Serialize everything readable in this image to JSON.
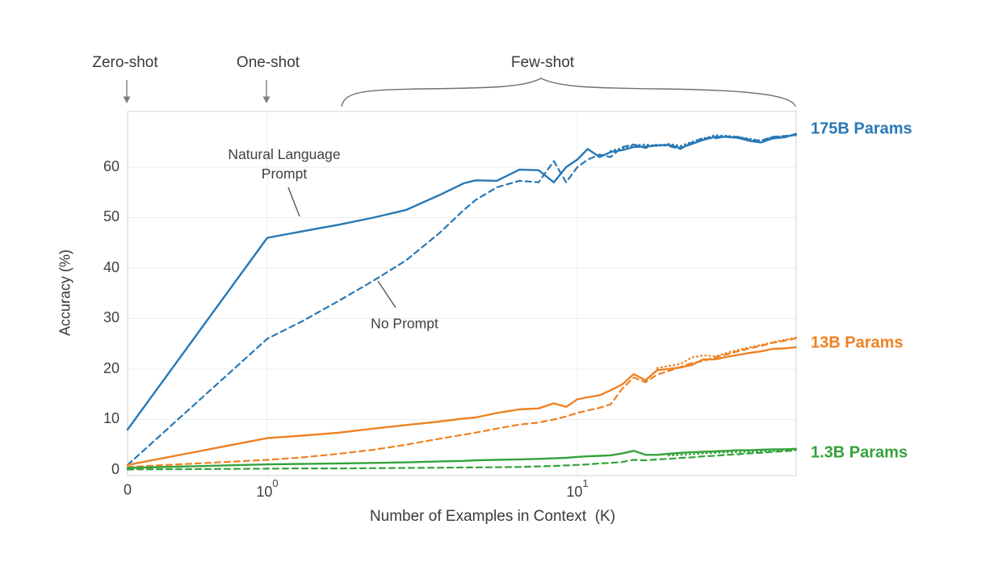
{
  "labels": {
    "zero_shot": "Zero-shot",
    "one_shot": "One-shot",
    "few_shot": "Few-shot",
    "natural_language_prompt": "Natural Language\nPrompt",
    "no_prompt": "No Prompt",
    "params_175b": "175B Params",
    "params_13b": "13B Params",
    "params_1_3b": "1.3B Params"
  },
  "chart_data": {
    "type": "line",
    "title": "",
    "x_axis": {
      "label": "Number of Examples in Context  (K)",
      "scale": "symlog (linear 0→1, log 1→50)",
      "ticks": [
        {
          "base": "0",
          "exp": ""
        },
        {
          "base": "10",
          "exp": "0"
        },
        {
          "base": "10",
          "exp": "1"
        }
      ],
      "range": [
        0,
        50
      ]
    },
    "y_axis": {
      "label": "Accuracy (%)",
      "ticks": [
        60,
        50,
        40,
        30,
        20,
        10,
        0
      ],
      "range": [
        0,
        71
      ],
      "grid": true
    },
    "legend_position": "right-edge colored labels; in-plot annotations label line styles",
    "colors": {
      "blue": "#2878b5",
      "orange": "#ef8123",
      "green": "#35a23b"
    },
    "x": [
      0,
      1,
      1.3,
      1.7,
      2.2,
      2.8,
      3.6,
      4.3,
      4.7,
      5.5,
      6.5,
      7.5,
      8.4,
      9.2,
      10,
      10.8,
      11.8,
      12.8,
      14,
      15.2,
      16.6,
      18.1,
      19.7,
      21.5,
      23.4,
      25.5,
      27.8,
      30.3,
      33,
      36,
      39.2,
      42.7,
      46.6,
      50.7
    ],
    "series": [
      {
        "name": "175B Params — Natural Language Prompt",
        "model": "175B",
        "prompt": "natural-language",
        "style": "solid",
        "color": "blue",
        "values": [
          8,
          46,
          47.3,
          48.6,
          50,
          51.5,
          54.5,
          56.8,
          57.4,
          57.3,
          59.5,
          59.4,
          57,
          60,
          61.5,
          63.6,
          62,
          63,
          63.4,
          64,
          64.1,
          64.3,
          64.4,
          63.8,
          64.6,
          65.4,
          66,
          66,
          65.8,
          65.2,
          64.9,
          65.7,
          65.9,
          66.6
        ]
      },
      {
        "name": "175B Params — No Prompt",
        "model": "175B",
        "prompt": "none",
        "style": "dashed",
        "color": "blue",
        "values": [
          1,
          26,
          29.5,
          33.5,
          37.5,
          41.5,
          47,
          51.5,
          53.5,
          56,
          57.3,
          57,
          61.2,
          57,
          60,
          61.5,
          62.5,
          62,
          64,
          64.5,
          63.8,
          64.5,
          64.2,
          63.6,
          64.9,
          65.8,
          65.7,
          66.1,
          66,
          65.4,
          65.3,
          66,
          66.2,
          66.4
        ]
      },
      {
        "name": "175B Params — few-shot (dotted)",
        "model": "175B",
        "prompt": "none",
        "style": "dotted",
        "color": "blue",
        "values": [
          null,
          null,
          null,
          null,
          null,
          null,
          null,
          null,
          null,
          null,
          null,
          null,
          null,
          null,
          null,
          null,
          null,
          63.2,
          63.8,
          64.3,
          64.5,
          64.2,
          64.6,
          64.2,
          65,
          65.7,
          66.3,
          66.2,
          66,
          65.6,
          65.2,
          66,
          66.1,
          66.3
        ]
      },
      {
        "name": "13B Params — Natural Language Prompt",
        "model": "13B",
        "prompt": "natural-language",
        "style": "solid",
        "color": "orange",
        "values": [
          1,
          6.3,
          6.8,
          7.4,
          8.2,
          8.9,
          9.6,
          10.2,
          10.4,
          11.3,
          12,
          12.2,
          13.2,
          12.5,
          14,
          14.4,
          14.8,
          15.8,
          17,
          19,
          17.8,
          19.8,
          20,
          20.3,
          20.8,
          21.9,
          21.9,
          22.4,
          22.8,
          23.2,
          23.5,
          24,
          24.1,
          24.3
        ]
      },
      {
        "name": "13B Params — No Prompt",
        "model": "13B",
        "prompt": "none",
        "style": "dashed",
        "color": "orange",
        "values": [
          0.6,
          2,
          2.5,
          3.2,
          4,
          5,
          6.2,
          7,
          7.4,
          8.2,
          9,
          9.4,
          10,
          10.6,
          11.3,
          11.8,
          12.3,
          13,
          16.2,
          18.3,
          17.4,
          18.9,
          19.6,
          20.4,
          21.2,
          21.6,
          22.3,
          22.9,
          23.5,
          24.1,
          24.6,
          25.2,
          25.6,
          26.1
        ]
      },
      {
        "name": "13B Params — few-shot (dotted)",
        "model": "13B",
        "prompt": "none",
        "style": "dotted",
        "color": "orange",
        "values": [
          null,
          null,
          null,
          null,
          null,
          null,
          null,
          null,
          null,
          null,
          null,
          null,
          null,
          null,
          null,
          null,
          null,
          null,
          null,
          null,
          null,
          20.2,
          20.6,
          21,
          22.3,
          22.7,
          22.5,
          23.2,
          23.8,
          24.3,
          24.8,
          25.3,
          25.8,
          26.2
        ]
      },
      {
        "name": "1.3B Params — Natural Language Prompt",
        "model": "1.3B",
        "prompt": "natural-language",
        "style": "solid",
        "color": "green",
        "values": [
          0.4,
          1.1,
          1.2,
          1.3,
          1.4,
          1.5,
          1.7,
          1.8,
          1.9,
          2,
          2.1,
          2.2,
          2.3,
          2.4,
          2.6,
          2.7,
          2.8,
          2.9,
          3.3,
          3.8,
          3,
          3,
          3.2,
          3.4,
          3.5,
          3.6,
          3.7,
          3.8,
          3.9,
          3.9,
          4,
          4.1,
          4.1,
          4.2
        ]
      },
      {
        "name": "1.3B Params — No Prompt",
        "model": "1.3B",
        "prompt": "none",
        "style": "dashed",
        "color": "green",
        "values": [
          0.1,
          0.25,
          0.3,
          0.3,
          0.35,
          0.4,
          0.45,
          0.5,
          0.5,
          0.55,
          0.6,
          0.7,
          0.8,
          0.9,
          1,
          1.1,
          1.3,
          1.4,
          1.6,
          2,
          1.9,
          2.1,
          2.2,
          2.4,
          2.5,
          2.7,
          2.8,
          3,
          3.1,
          3.3,
          3.4,
          3.6,
          3.7,
          3.9
        ]
      },
      {
        "name": "1.3B Params — few-shot (dotted)",
        "model": "1.3B",
        "prompt": "none",
        "style": "dotted",
        "color": "green",
        "values": [
          null,
          null,
          null,
          null,
          null,
          null,
          null,
          null,
          null,
          null,
          null,
          null,
          null,
          null,
          null,
          null,
          null,
          null,
          null,
          null,
          null,
          null,
          2.9,
          3,
          3.1,
          3.3,
          3.4,
          3.5,
          3.5,
          3.6,
          3.7,
          3.8,
          3.9,
          4
        ]
      }
    ]
  }
}
